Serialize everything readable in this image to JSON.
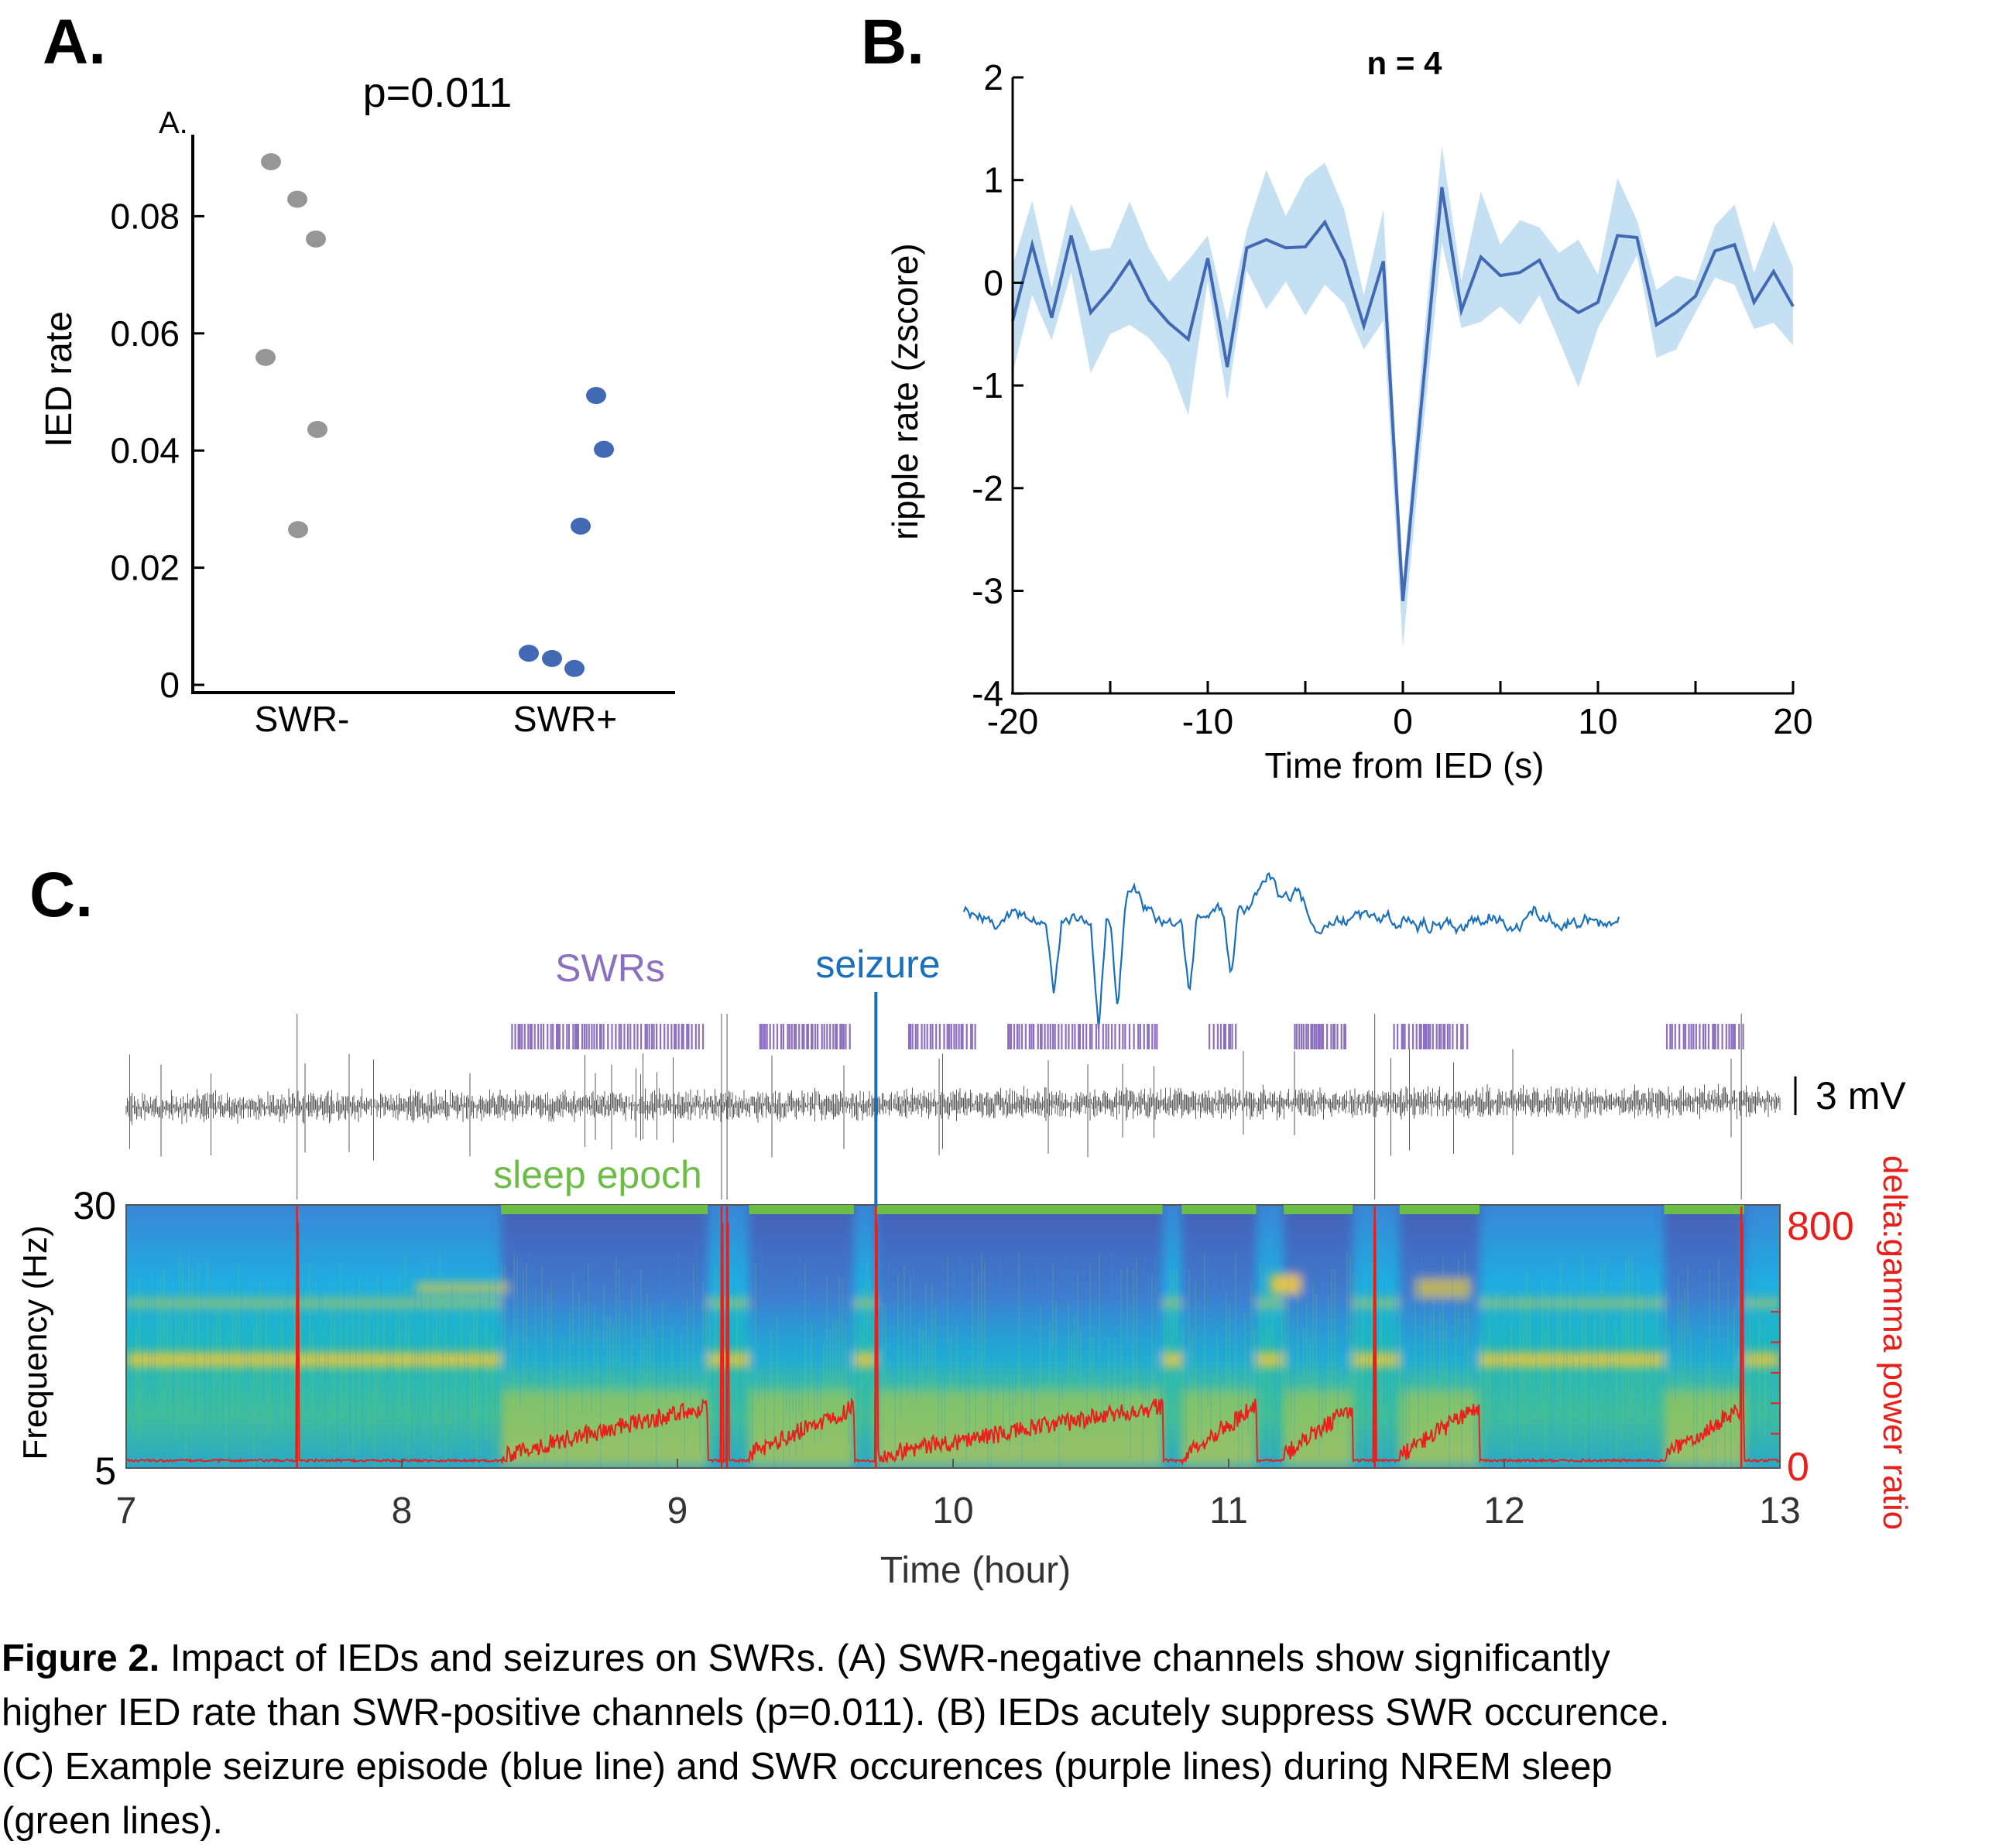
{
  "figure": {
    "panel_labels": {
      "a": "A.",
      "b": "B.",
      "c": "C."
    },
    "caption": {
      "title": "Figure 2.",
      "lines": [
        " Impact of IEDs and seizures on SWRs. (A) SWR-negative channels show significantly",
        "higher IED rate than SWR-positive channels (p=0.011). (B) IEDs acutely suppress SWR occurence.",
        "(C) Example seizure episode (blue line) and SWR occurences (purple lines) during NREM sleep",
        "(green lines)."
      ]
    }
  },
  "chart_data": [
    {
      "type": "scatter",
      "panel": "A",
      "title": "p=0.011",
      "corner_label": "A.",
      "xlabel": "",
      "ylabel": "IED rate",
      "categories": [
        "SWR-",
        "SWR+"
      ],
      "ylim": [
        0,
        0.09
      ],
      "yticks": [
        0,
        0.02,
        0.04,
        0.06,
        0.08
      ],
      "ytick_labels": [
        "0",
        "0.02",
        "0.04",
        "0.06",
        "0.08"
      ],
      "grid": false,
      "colors": {
        "SWR-": "#969696",
        "SWR+": "#4169b4"
      },
      "series": [
        {
          "category": "SWR-",
          "values": [
            0.0893,
            0.0829,
            0.0761,
            0.0559,
            0.0436,
            0.0265
          ]
        },
        {
          "category": "SWR+",
          "values": [
            0.0494,
            0.0402,
            0.0271,
            0.0054,
            0.0045,
            0.0028
          ]
        }
      ]
    },
    {
      "type": "line",
      "panel": "B",
      "title": "n = 4",
      "xlabel": "Time from IED (s)",
      "ylabel": "ripple rate (zscore)",
      "xlim": [
        -20,
        20
      ],
      "ylim": [
        -4,
        2
      ],
      "xticks": [
        -20,
        -10,
        0,
        10,
        20
      ],
      "xtick_labels": [
        "-20",
        "-10",
        "0",
        "10",
        "20"
      ],
      "yticks": [
        -4,
        -3,
        -2,
        -1,
        0,
        1,
        2
      ],
      "ytick_labels": [
        "-4",
        "-3",
        "-2",
        "-1",
        "0",
        "1",
        "2"
      ],
      "grid": false,
      "line_color": "#4169b4",
      "band_color": "#c6e0f3",
      "x": [
        -20,
        -19,
        -18,
        -17,
        -16,
        -15,
        -14,
        -13,
        -12,
        -11,
        -10,
        -9,
        -8,
        -7,
        -6,
        -5,
        -4,
        -3,
        -2,
        -1,
        0,
        1,
        2,
        3,
        4,
        5,
        6,
        7,
        8,
        9,
        10,
        11,
        12,
        13,
        14,
        15,
        16,
        17,
        18,
        19,
        20
      ],
      "mean": [
        -0.37,
        0.37,
        -0.34,
        0.46,
        -0.29,
        -0.07,
        0.21,
        -0.17,
        -0.39,
        -0.55,
        0.24,
        -0.82,
        0.34,
        0.42,
        0.34,
        0.35,
        0.59,
        0.21,
        -0.42,
        0.21,
        -3.1,
        -1.08,
        0.93,
        -0.27,
        0.25,
        0.07,
        0.1,
        0.22,
        -0.16,
        -0.29,
        -0.19,
        0.46,
        0.44,
        -0.41,
        -0.29,
        -0.13,
        0.31,
        0.37,
        -0.19,
        0.11,
        -0.23
      ],
      "upper": [
        0.17,
        0.8,
        -0.05,
        0.77,
        0.31,
        0.34,
        0.79,
        0.33,
        0.01,
        0.22,
        0.46,
        -0.37,
        0.51,
        1.1,
        0.65,
        1.02,
        1.17,
        0.71,
        -0.12,
        0.71,
        -2.9,
        -0.7,
        1.34,
        0.02,
        0.89,
        0.37,
        0.61,
        0.54,
        0.29,
        0.42,
        0.08,
        1.02,
        0.61,
        -0.07,
        0.07,
        0.02,
        0.56,
        0.76,
        0.1,
        0.6,
        0.15
      ],
      "lower": [
        -0.88,
        -0.12,
        -0.56,
        0.1,
        -0.88,
        -0.5,
        -0.41,
        -0.54,
        -0.78,
        -1.29,
        0.02,
        -1.15,
        0.12,
        -0.26,
        0.01,
        -0.32,
        -0.02,
        -0.2,
        -0.65,
        -0.37,
        -3.55,
        -1.5,
        0.39,
        -0.44,
        -0.38,
        -0.23,
        -0.41,
        -0.12,
        -0.56,
        -1.02,
        -0.44,
        -0.1,
        0.27,
        -0.73,
        -0.65,
        -0.29,
        0.05,
        -0.02,
        -0.45,
        -0.39,
        -0.61
      ]
    },
    {
      "type": "heatmap",
      "panel": "C",
      "xlabel": "Time (hour)",
      "ylabel": "Frequency (Hz)",
      "ylabel_right": "delta:gamma power ratio",
      "xlim": [
        7,
        13
      ],
      "xticks": [
        7,
        8,
        9,
        10,
        11,
        12,
        13
      ],
      "xtick_labels": [
        "7",
        "8",
        "9",
        "10",
        "11",
        "12",
        "13"
      ],
      "ylim": [
        5,
        30
      ],
      "ytick_labels": [
        "5",
        "30"
      ],
      "ylim_right": [
        0,
        800
      ],
      "ytick_labels_right": [
        "0",
        "800"
      ],
      "annotations": {
        "swrs": "SWRs",
        "seizure": "seizure",
        "sleep_epoch": "sleep epoch",
        "scale_bar": "3 mV"
      },
      "colors": {
        "swrs": "#8c6fbf",
        "seizure": "#1a6fba",
        "sleep_epoch": "#6cbd45",
        "ratio": "#e8201c",
        "lfp": "#555555"
      },
      "sleep_epochs": [
        [
          8.36,
          9.11
        ],
        [
          9.26,
          9.64
        ],
        [
          9.72,
          10.76
        ],
        [
          10.83,
          11.1
        ],
        [
          11.2,
          11.45
        ],
        [
          11.62,
          11.91
        ],
        [
          12.58,
          12.87
        ]
      ],
      "seizure_times": [
        7.62,
        9.16,
        9.18,
        9.72,
        11.53,
        12.86
      ],
      "highlighted_seizure": 9.72,
      "swr_clusters": [
        [
          8.4,
          9.1
        ],
        [
          9.3,
          9.63
        ],
        [
          9.84,
          10.09
        ],
        [
          10.2,
          10.75
        ],
        [
          10.93,
          11.03
        ],
        [
          11.24,
          11.43
        ],
        [
          11.6,
          11.87
        ],
        [
          12.59,
          12.87
        ]
      ]
    }
  ]
}
